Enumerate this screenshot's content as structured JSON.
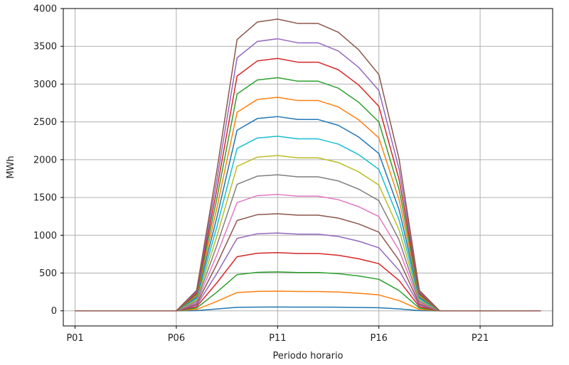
{
  "chart_data": {
    "type": "line",
    "xlabel": "Periodo horario",
    "ylabel": "MWh",
    "x": [
      "P01",
      "P02",
      "P03",
      "P04",
      "P05",
      "P06",
      "P07",
      "P08",
      "P09",
      "P10",
      "P11",
      "P12",
      "P13",
      "P14",
      "P15",
      "P16",
      "P17",
      "P18",
      "P19",
      "P20",
      "P21",
      "P22",
      "P23",
      "P24"
    ],
    "xticks": [
      "P01",
      "P06",
      "P11",
      "P16",
      "P21"
    ],
    "yticks": [
      0,
      500,
      1000,
      1500,
      2000,
      2500,
      3000,
      3500,
      4000
    ],
    "ylim": [
      -200,
      4000
    ],
    "grid": true,
    "profile": [
      0,
      0,
      0,
      0,
      0,
      0,
      0.07,
      0.48,
      0.93,
      0.99,
      1.0,
      0.985,
      0.985,
      0.955,
      0.895,
      0.81,
      0.52,
      0.07,
      0,
      0,
      0,
      0,
      0,
      0
    ],
    "series": [
      {
        "peak": 50,
        "color": "#1f77b4"
      },
      {
        "peak": 260,
        "color": "#ff7f0e"
      },
      {
        "peak": 515,
        "color": "#2ca02c"
      },
      {
        "peak": 770,
        "color": "#d62728"
      },
      {
        "peak": 1030,
        "color": "#9467bd"
      },
      {
        "peak": 1285,
        "color": "#8c564b"
      },
      {
        "peak": 1540,
        "color": "#e377c2"
      },
      {
        "peak": 1800,
        "color": "#7f7f7f"
      },
      {
        "peak": 2055,
        "color": "#bcbd22"
      },
      {
        "peak": 2310,
        "color": "#17becf"
      },
      {
        "peak": 2570,
        "color": "#1f77b4"
      },
      {
        "peak": 2825,
        "color": "#ff7f0e"
      },
      {
        "peak": 3085,
        "color": "#2ca02c"
      },
      {
        "peak": 3340,
        "color": "#d62728"
      },
      {
        "peak": 3600,
        "color": "#9467bd"
      },
      {
        "peak": 3860,
        "color": "#8c564b"
      }
    ]
  }
}
